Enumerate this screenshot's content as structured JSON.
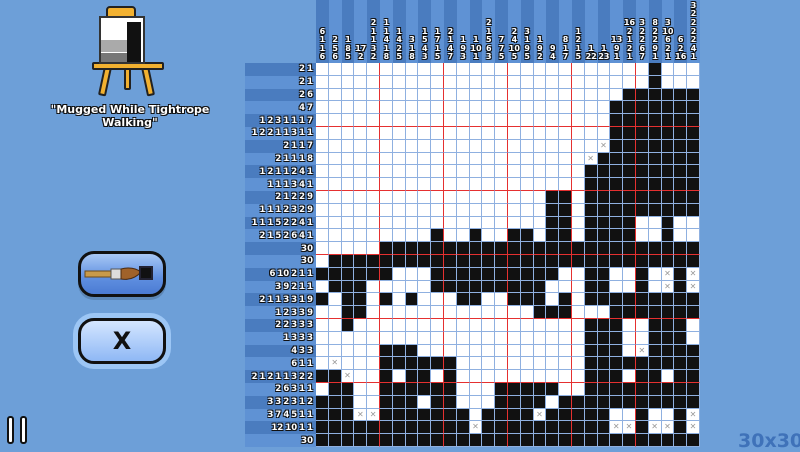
{
  "puzzle": {
    "title": "\"Mugged While Tightrope Walking\"",
    "size_label": "30x30"
  },
  "tools": {
    "brush_icon": "paintbrush-icon",
    "fill_swatch_color": "#111111",
    "cross_label": "X"
  },
  "colors": {
    "background": "#6d9fd8",
    "filled": "#111111",
    "major_grid": "#e53030",
    "minor_grid": "#8fb0e0"
  },
  "column_clues": [
    [
      6,
      1,
      1,
      6
    ],
    [
      2,
      5,
      6
    ],
    [
      1,
      8,
      5
    ],
    [
      17,
      2
    ],
    [
      2,
      1,
      1,
      3,
      2
    ],
    [
      1,
      1,
      4,
      1,
      8
    ],
    [
      1,
      4,
      2,
      5
    ],
    [
      3,
      1,
      8
    ],
    [
      1,
      5,
      4,
      3
    ],
    [
      1,
      7,
      1,
      5
    ],
    [
      2,
      1,
      4,
      7
    ],
    [
      1,
      9,
      3
    ],
    [
      1,
      10,
      1
    ],
    [
      2,
      1,
      5,
      6,
      3
    ],
    [
      7,
      7,
      5
    ],
    [
      2,
      4,
      10,
      5
    ],
    [
      3,
      1,
      9,
      5
    ],
    [
      1,
      9,
      2
    ],
    [
      9,
      4
    ],
    [
      8,
      1,
      7
    ],
    [
      1,
      2,
      1,
      5
    ],
    [
      1,
      22
    ],
    [
      1,
      23
    ],
    [
      13,
      9,
      1
    ],
    [
      16,
      2,
      1,
      2,
      1
    ],
    [
      3,
      2,
      2,
      6,
      7
    ],
    [
      8,
      2,
      2,
      9,
      1
    ],
    [
      3,
      10,
      6,
      2,
      1
    ],
    [
      6,
      2,
      16
    ],
    [
      3,
      2,
      2,
      2,
      2,
      4,
      1
    ]
  ],
  "row_clues": [
    [
      2,
      1
    ],
    [
      2,
      1
    ],
    [
      2,
      6
    ],
    [
      4,
      7
    ],
    [
      1,
      2,
      3,
      1,
      1,
      1,
      7
    ],
    [
      1,
      2,
      2,
      1,
      1,
      3,
      1,
      1
    ],
    [
      2,
      1,
      1,
      7
    ],
    [
      2,
      1,
      1,
      1,
      8
    ],
    [
      1,
      2,
      1,
      1,
      2,
      4,
      1
    ],
    [
      1,
      1,
      1,
      3,
      4,
      1
    ],
    [
      2,
      1,
      2,
      2,
      9
    ],
    [
      1,
      1,
      1,
      2,
      3,
      2,
      9
    ],
    [
      1,
      1,
      1,
      5,
      2,
      2,
      4,
      1
    ],
    [
      2,
      1,
      5,
      2,
      6,
      4,
      1
    ],
    [
      30
    ],
    [
      30
    ],
    [
      6,
      10,
      2,
      1,
      1
    ],
    [
      3,
      9,
      2,
      1,
      1
    ],
    [
      2,
      1,
      1,
      3,
      3,
      1,
      9
    ],
    [
      1,
      2,
      3,
      3,
      9
    ],
    [
      2,
      2,
      3,
      3,
      3
    ],
    [
      1,
      3,
      3,
      3
    ],
    [
      4,
      3,
      3
    ],
    [
      6,
      1,
      1
    ],
    [
      2,
      1,
      2,
      1,
      1,
      3,
      2,
      2
    ],
    [
      2,
      6,
      3,
      1,
      1
    ],
    [
      3,
      3,
      2,
      3,
      1,
      2
    ],
    [
      3,
      7,
      4,
      5,
      1,
      1
    ],
    [
      12,
      10,
      1,
      1
    ],
    [
      30
    ]
  ],
  "grid_state": [
    "..........................#...",
    "..........................#...",
    "........................######",
    ".......................#######",
    ".......................#######",
    ".......................#######",
    "......................x#######",
    ".....................x########",
    ".....................#########",
    ".....................#########",
    "..................##.#########",
    "..................##.#########",
    "..................##.####..#..",
    ".........#..#..##.##.####..#..",
    ".....#########################",
    ".#############################",
    "######...##########..##..#.x#x",
    ".###.....#########...##..#.x#x",
    "#.##.#.#...##..###.#.#########",
    "..##.......... ..###...#######",
    "..#..................###..###.",
    ".....................###..###.",
    ".....###.............###.x####",
    ".x...######..........#########",
    "##x..#.##.#..........###.##.##",
    ".##..######...#####..#########",
    "###..###.##...####.###########",
    "###xx#######.####x#####..#..#x",
    "############x##########xx#xx#x",
    "##############################"
  ]
}
